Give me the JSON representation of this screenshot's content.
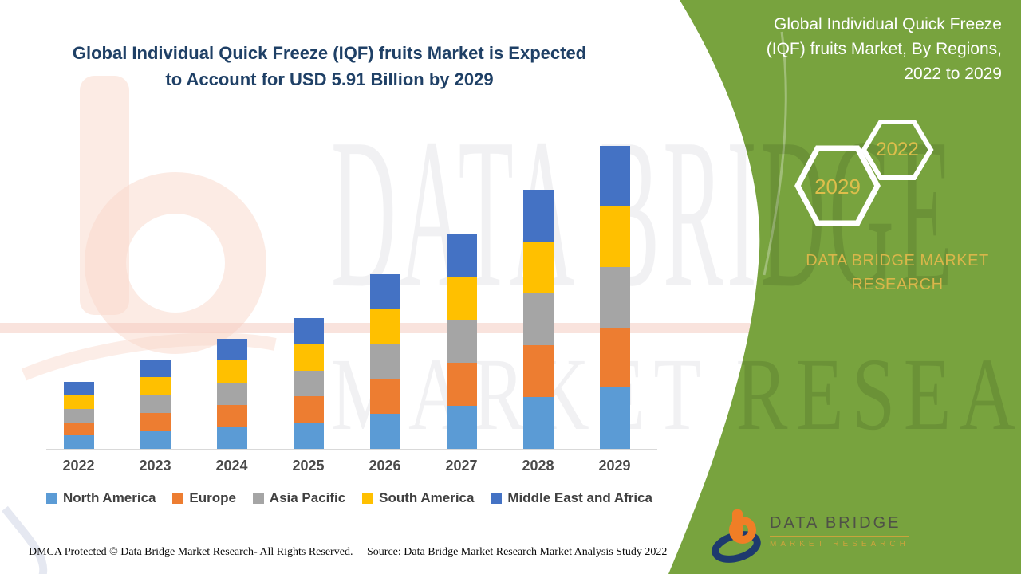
{
  "header": {
    "title_line1": "Global Individual Quick Freeze (IQF) fruits Market is Expected",
    "title_line2": "to Account for USD 5.91 Billion by 2029"
  },
  "side_panel": {
    "background_color": "#78A33E",
    "heading_line1": "Global Individual Quick Freeze",
    "heading_line2": "(IQF) fruits Market, By Regions,",
    "heading_line3": "2022 to 2029",
    "badges": [
      {
        "year": "2029"
      },
      {
        "year": "2022"
      }
    ],
    "brand_line1": "DATA BRIDGE MARKET",
    "brand_line2": "RESEARCH",
    "gold_color": "#D9B64A"
  },
  "watermark": {
    "line1": "DATA BRIDGE",
    "line2": "MARKET RESEARCH"
  },
  "logo": {
    "name_text": "DATA BRIDGE",
    "tagline_text": "MARKET RESEARCH"
  },
  "footer": {
    "left_text": "DMCA Protected © Data Bridge Market Research- All Rights Reserved.",
    "right_text": "Source: Data Bridge Market Research Market Analysis Study 2022"
  },
  "chart_data": {
    "type": "bar",
    "stacked": true,
    "title": "Global Individual Quick Freeze (IQF) fruits Market is Expected to Account for USD 5.91 Billion by 2029",
    "unit": "USD Billion",
    "categories": [
      "2022",
      "2023",
      "2024",
      "2025",
      "2026",
      "2027",
      "2028",
      "2029"
    ],
    "series": [
      {
        "name": "North America",
        "color": "#5B9BD5",
        "values": [
          0.26,
          0.35,
          0.43,
          0.51,
          0.68,
          0.84,
          1.01,
          1.19
        ]
      },
      {
        "name": "Europe",
        "color": "#ED7D31",
        "values": [
          0.26,
          0.35,
          0.43,
          0.51,
          0.68,
          0.84,
          1.01,
          1.18
        ]
      },
      {
        "name": "Asia Pacific",
        "color": "#A5A5A5",
        "values": [
          0.26,
          0.35,
          0.43,
          0.51,
          0.68,
          0.84,
          1.01,
          1.18
        ]
      },
      {
        "name": "South America",
        "color": "#FFC000",
        "values": [
          0.26,
          0.35,
          0.43,
          0.51,
          0.68,
          0.84,
          1.01,
          1.18
        ]
      },
      {
        "name": "Middle East and Africa",
        "color": "#4472C4",
        "values": [
          0.26,
          0.35,
          0.43,
          0.51,
          0.68,
          0.84,
          1.01,
          1.18
        ]
      }
    ],
    "totals": [
      1.3,
      1.75,
      2.15,
      2.55,
      3.4,
      4.2,
      5.05,
      5.91
    ],
    "ylim": [
      0,
      6.2
    ],
    "gridlines": false,
    "y_axis_shown": false,
    "legend_position": "bottom"
  }
}
